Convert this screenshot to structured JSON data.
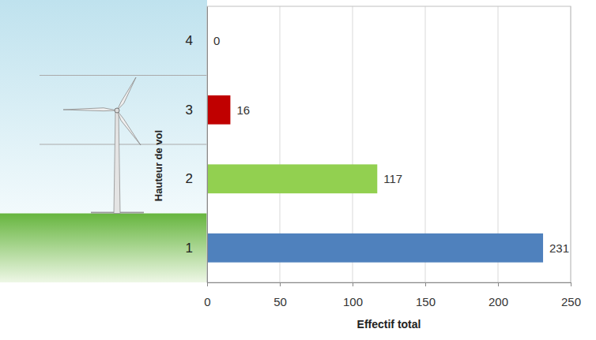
{
  "chart_data": {
    "type": "bar",
    "orientation": "horizontal",
    "categories": [
      "1",
      "2",
      "3",
      "4"
    ],
    "values": [
      231,
      117,
      16,
      0
    ],
    "colors": [
      "#4f81bd",
      "#92d050",
      "#c00000",
      "#4f81bd"
    ],
    "xlim": [
      0,
      250
    ],
    "xticks": [
      0,
      50,
      100,
      150,
      200,
      250
    ],
    "x_label": "Effectif total",
    "y_label": "Hauteur de vol",
    "grid": true,
    "data_labels": true
  }
}
